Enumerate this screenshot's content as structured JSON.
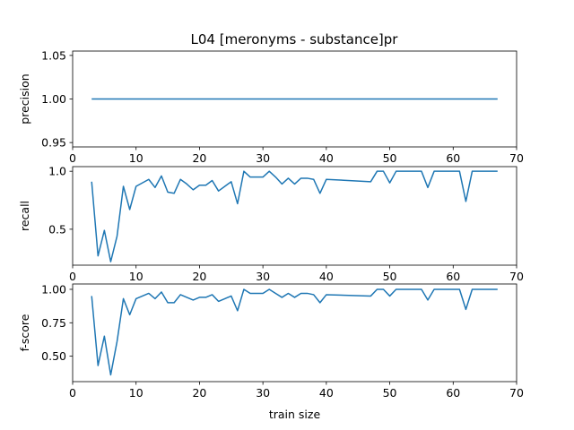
{
  "title": "L04 [meronyms - substance]pr",
  "line_color": "#1f77b4",
  "chart_data": [
    {
      "type": "line",
      "ylabel": "precision",
      "xlabel": "",
      "xlim": [
        0,
        70
      ],
      "ylim": [
        0.945,
        1.055
      ],
      "xticks": [
        0,
        10,
        20,
        30,
        40,
        50,
        60,
        70
      ],
      "yticks": [
        0.95,
        1.0,
        1.05
      ],
      "ytick_labels": [
        "0.95",
        "1.00",
        "1.05"
      ],
      "x": [
        3,
        67
      ],
      "y": [
        1.0,
        1.0
      ]
    },
    {
      "type": "line",
      "ylabel": "recall",
      "xlabel": "",
      "xlim": [
        0,
        70
      ],
      "ylim": [
        0.19,
        1.04
      ],
      "xticks": [
        0,
        10,
        20,
        30,
        40,
        50,
        60,
        70
      ],
      "yticks": [
        0.5,
        1.0
      ],
      "ytick_labels": [
        "0.5",
        "1.0"
      ],
      "x": [
        3,
        4,
        5,
        6,
        7,
        8,
        9,
        10,
        11,
        12,
        13,
        14,
        15,
        16,
        17,
        18,
        19,
        20,
        21,
        22,
        23,
        24,
        25,
        26,
        27,
        28,
        29,
        30,
        31,
        32,
        33,
        34,
        35,
        36,
        37,
        38,
        39,
        40,
        47,
        48,
        49,
        50,
        51,
        55,
        56,
        57,
        61,
        62,
        63,
        67
      ],
      "y": [
        0.91,
        0.27,
        0.49,
        0.22,
        0.44,
        0.87,
        0.67,
        0.87,
        0.9,
        0.93,
        0.86,
        0.96,
        0.82,
        0.81,
        0.93,
        0.89,
        0.84,
        0.88,
        0.88,
        0.92,
        0.83,
        0.87,
        0.91,
        0.72,
        1.0,
        0.95,
        0.95,
        0.95,
        1.0,
        0.95,
        0.89,
        0.94,
        0.89,
        0.94,
        0.94,
        0.93,
        0.81,
        0.93,
        0.91,
        1.0,
        1.0,
        0.9,
        1.0,
        1.0,
        0.86,
        1.0,
        1.0,
        0.74,
        1.0,
        1.0
      ]
    },
    {
      "type": "line",
      "ylabel": "f-score",
      "xlabel": "train size",
      "xlim": [
        0,
        70
      ],
      "ylim": [
        0.31,
        1.04
      ],
      "xticks": [
        0,
        10,
        20,
        30,
        40,
        50,
        60,
        70
      ],
      "yticks": [
        0.5,
        0.75,
        1.0
      ],
      "ytick_labels": [
        "0.50",
        "0.75",
        "1.00"
      ],
      "x": [
        3,
        4,
        5,
        6,
        7,
        8,
        9,
        10,
        11,
        12,
        13,
        14,
        15,
        16,
        17,
        18,
        19,
        20,
        21,
        22,
        23,
        24,
        25,
        26,
        27,
        28,
        29,
        30,
        31,
        32,
        33,
        34,
        35,
        36,
        37,
        38,
        39,
        40,
        47,
        48,
        49,
        50,
        51,
        55,
        56,
        57,
        61,
        62,
        63,
        67
      ],
      "y": [
        0.95,
        0.43,
        0.65,
        0.36,
        0.61,
        0.93,
        0.81,
        0.93,
        0.95,
        0.97,
        0.93,
        0.98,
        0.9,
        0.9,
        0.96,
        0.94,
        0.92,
        0.94,
        0.94,
        0.96,
        0.91,
        0.93,
        0.95,
        0.84,
        1.0,
        0.97,
        0.97,
        0.97,
        1.0,
        0.97,
        0.94,
        0.97,
        0.94,
        0.97,
        0.97,
        0.96,
        0.9,
        0.96,
        0.95,
        1.0,
        1.0,
        0.95,
        1.0,
        1.0,
        0.92,
        1.0,
        1.0,
        0.85,
        1.0,
        1.0
      ]
    }
  ]
}
